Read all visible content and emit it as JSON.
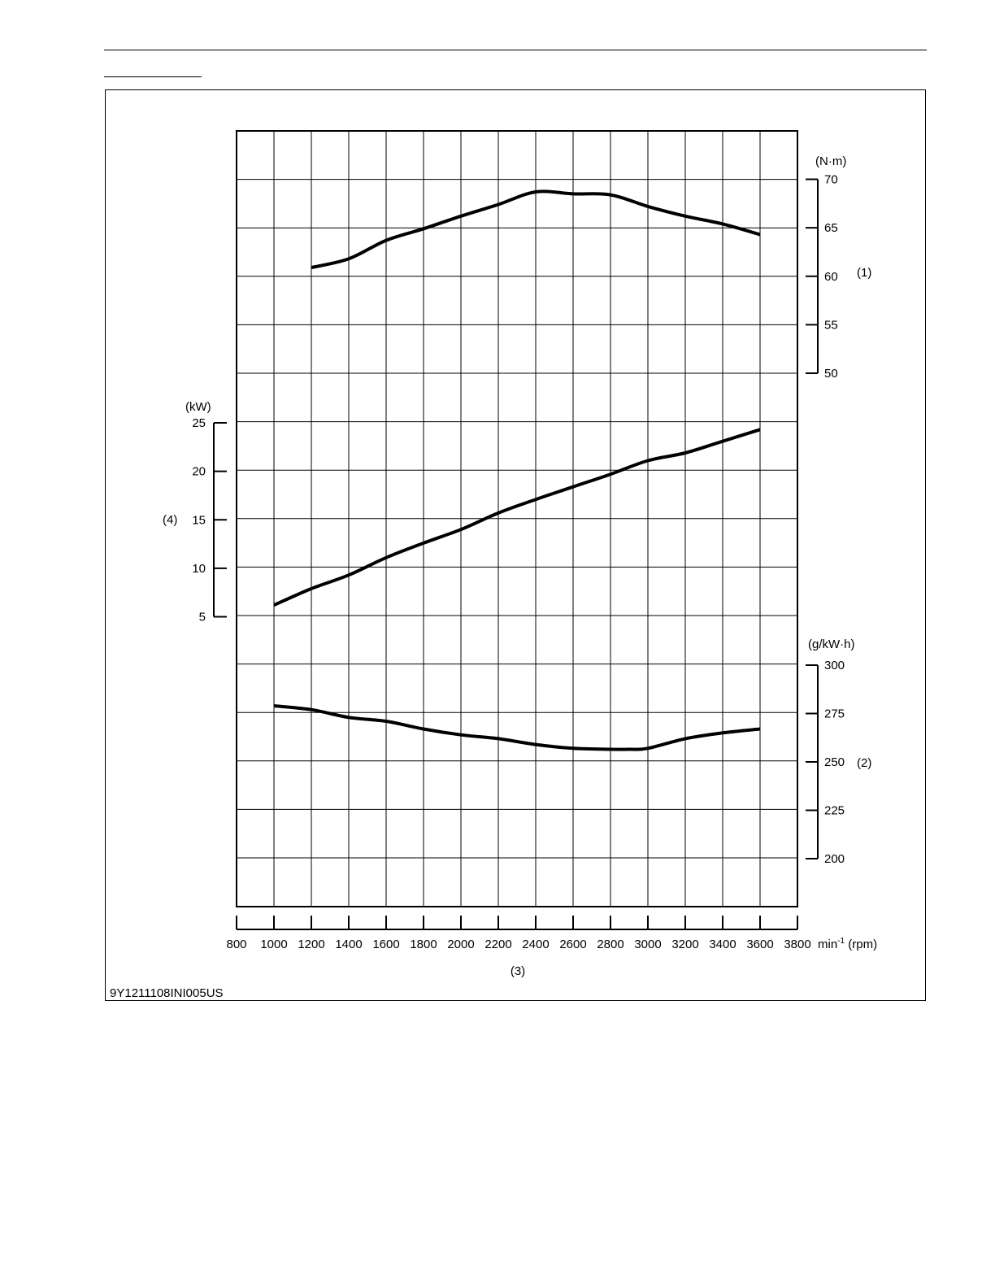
{
  "figure_code": "9Y1211108INI005US",
  "chart_data": {
    "type": "line",
    "x_axis": {
      "ticks": [
        800,
        1000,
        1200,
        1400,
        1600,
        1800,
        2000,
        2200,
        2400,
        2600,
        2800,
        3000,
        3200,
        3400,
        3600,
        3800
      ],
      "range": [
        800,
        3800
      ],
      "unit_label": "min",
      "unit_superscript": "-1",
      "unit_suffix": " (rpm)",
      "callout": "(3)"
    },
    "axes": {
      "torque": {
        "unit": "(N·m)",
        "callout": "(1)",
        "ticks": [
          70,
          65,
          60,
          55,
          50
        ],
        "range": [
          50,
          70
        ],
        "side": "right"
      },
      "power": {
        "unit": "(kW)",
        "callout": "(4)",
        "ticks": [
          25,
          20,
          15,
          10,
          5
        ],
        "range": [
          5,
          25
        ],
        "side": "left"
      },
      "fuel": {
        "unit": "(g/kW·h)",
        "callout": "(2)",
        "ticks": [
          300,
          275,
          250,
          225,
          200
        ],
        "range": [
          200,
          300
        ],
        "side": "right"
      }
    },
    "series": [
      {
        "axis": "torque",
        "x": [
          1200,
          1400,
          1600,
          1800,
          2000,
          2200,
          2400,
          2600,
          2800,
          3000,
          3200,
          3400,
          3600
        ],
        "y": [
          60.9,
          61.8,
          63.7,
          64.9,
          66.2,
          67.4,
          68.7,
          68.5,
          68.4,
          67.2,
          66.2,
          65.4,
          64.3
        ]
      },
      {
        "axis": "power",
        "x": [
          1000,
          1200,
          1400,
          1600,
          1800,
          2000,
          2200,
          2400,
          2600,
          2800,
          3000,
          3200,
          3400,
          3600
        ],
        "y": [
          6.2,
          7.9,
          9.3,
          11.1,
          12.6,
          14.0,
          15.7,
          17.1,
          18.4,
          19.7,
          21.1,
          21.9,
          23.1,
          24.3
        ]
      },
      {
        "axis": "fuel",
        "x": [
          1000,
          1200,
          1400,
          1600,
          1800,
          2000,
          2200,
          2400,
          2600,
          2800,
          2900,
          3000,
          3200,
          3400,
          3600
        ],
        "y": [
          279,
          277,
          273,
          271,
          267,
          264,
          262,
          259,
          257,
          256.5,
          256.5,
          257,
          262,
          265,
          267
        ]
      }
    ],
    "grid": true
  }
}
